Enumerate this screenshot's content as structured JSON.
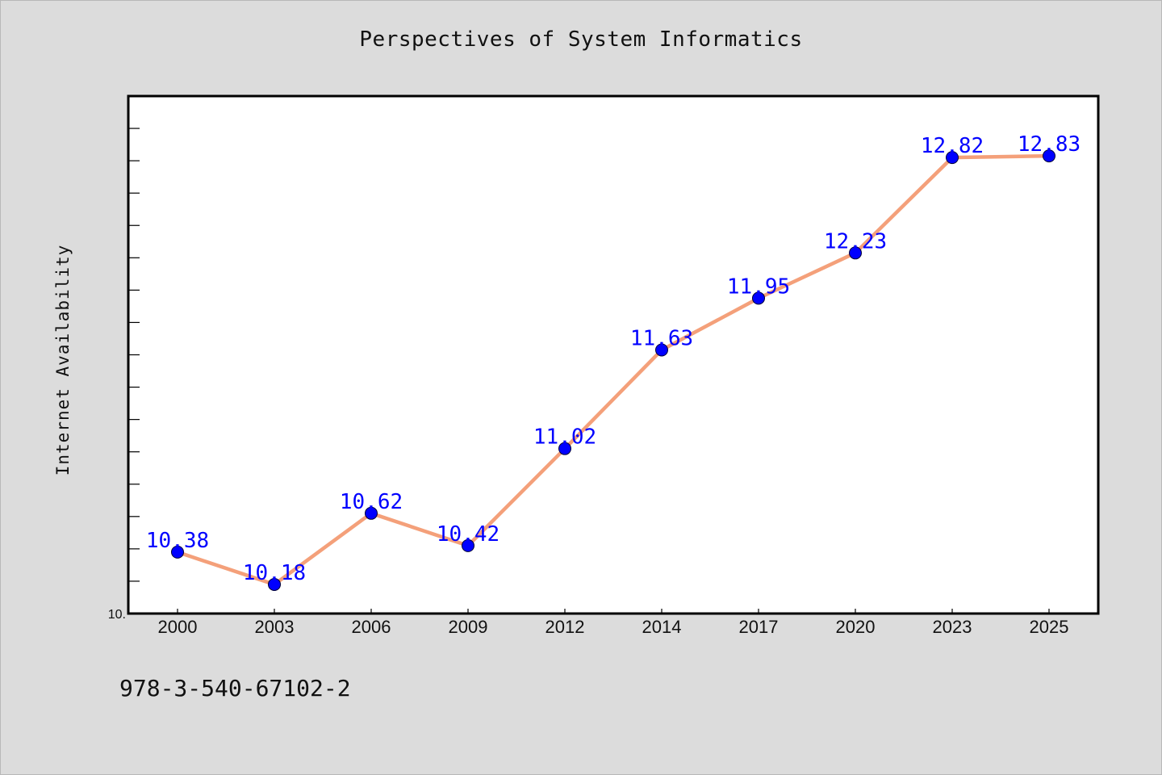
{
  "chart_data": {
    "type": "line",
    "title": "Perspectives of System Informatics",
    "xlabel": "",
    "ylabel": "Internet Availability",
    "categories": [
      "2000",
      "2003",
      "2006",
      "2009",
      "2012",
      "2014",
      "2017",
      "2020",
      "2023",
      "2025"
    ],
    "series": [
      {
        "values": [
          10.38,
          10.18,
          10.62,
          10.42,
          11.02,
          11.63,
          11.95,
          12.23,
          12.82,
          12.83
        ],
        "labels": [
          "10.38",
          "10.18",
          "10.62",
          "10.42",
          "11.02",
          "11.63",
          "11.95",
          "12.23",
          "12.82",
          "12.83"
        ],
        "line_color": "#f4a07a",
        "marker_color": "#0000ff"
      }
    ],
    "ylim": [
      10.0,
      13.2
    ],
    "y_tick_labels": [
      "10."
    ],
    "grid": false,
    "legend": "none"
  },
  "footer": {
    "text": "978-3-540-67102-2"
  }
}
